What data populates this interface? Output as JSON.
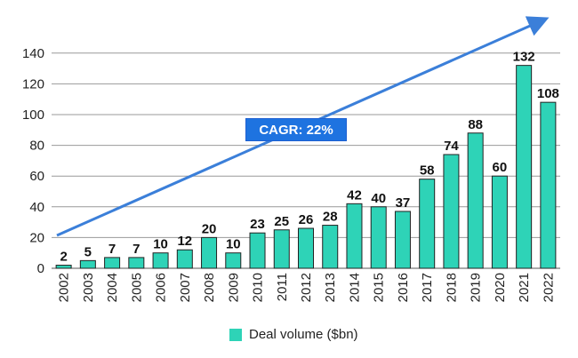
{
  "chart_data": {
    "type": "bar",
    "categories": [
      "2002",
      "2003",
      "2004",
      "2005",
      "2006",
      "2007",
      "2008",
      "2009",
      "2010",
      "2011",
      "2012",
      "2013",
      "2014",
      "2015",
      "2016",
      "2017",
      "2018",
      "2019",
      "2020",
      "2021",
      "2022"
    ],
    "values": [
      2,
      5,
      7,
      7,
      10,
      12,
      20,
      10,
      23,
      25,
      26,
      28,
      42,
      40,
      37,
      58,
      74,
      88,
      60,
      132,
      108
    ],
    "series": [
      {
        "name": "Deal volume ($bn)",
        "values": [
          2,
          5,
          7,
          7,
          10,
          12,
          20,
          10,
          23,
          25,
          26,
          28,
          42,
          40,
          37,
          58,
          74,
          88,
          60,
          132,
          108
        ]
      }
    ],
    "yticks": [
      0,
      20,
      40,
      60,
      80,
      100,
      120,
      140
    ],
    "ylim": [
      0,
      150
    ],
    "grid": true,
    "legend_position": "bottom",
    "annotation": "CAGR: 22%",
    "bar_color": "#2ed3b7",
    "trend_color": "#3b7fd9",
    "annotation_fill": "#1e73e0"
  }
}
